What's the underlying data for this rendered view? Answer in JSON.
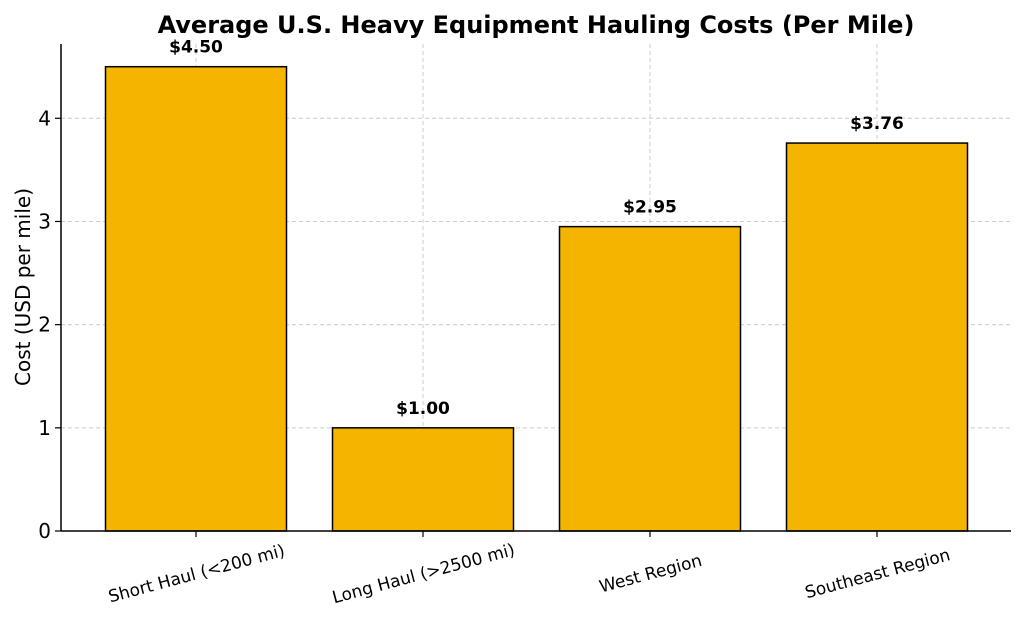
{
  "chart_data": {
    "type": "bar",
    "title": "Average U.S. Heavy Equipment Hauling Costs (Per Mile)",
    "xlabel": "",
    "ylabel": "Cost (USD per mile)",
    "categories": [
      "Short Haul (<200 mi)",
      "Long Haul (>2500 mi)",
      "West Region",
      "Southeast Region"
    ],
    "values": [
      4.5,
      1.0,
      2.95,
      3.76
    ],
    "data_labels": [
      "$4.50",
      "$1.00",
      "$2.95",
      "$3.76"
    ],
    "ylim": [
      0,
      4.72
    ],
    "yticks": [
      0,
      1,
      2,
      3,
      4
    ],
    "grid": true,
    "bar_color": "#F4B400",
    "bar_edge_color": "#000000"
  }
}
